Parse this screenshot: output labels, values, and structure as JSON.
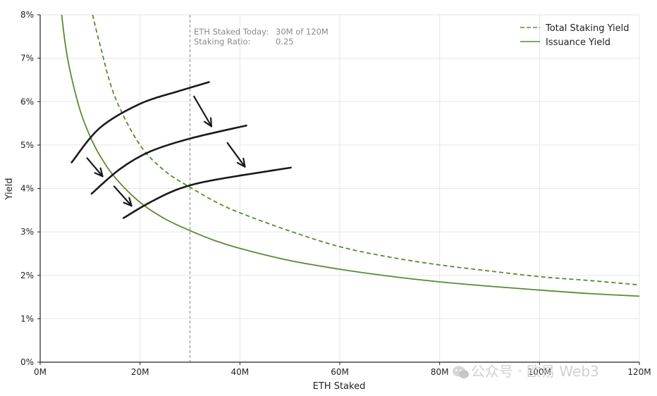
{
  "chart_data": {
    "type": "line",
    "xlabel": "ETH Staked",
    "ylabel": "Yield",
    "xlim": [
      0,
      120
    ],
    "ylim": [
      0,
      8
    ],
    "x_unit": "M ETH",
    "y_unit": "%",
    "x_ticks": [
      "0M",
      "20M",
      "40M",
      "60M",
      "80M",
      "100M",
      "120M"
    ],
    "y_ticks": [
      "0%",
      "1%",
      "2%",
      "3%",
      "4%",
      "5%",
      "6%",
      "7%",
      "8%"
    ],
    "grid": true,
    "legend_position": "top-right",
    "series": [
      {
        "name": "Total Staking Yield",
        "style": "dashed",
        "color": "#5a8a32",
        "x": [
          10.5,
          12,
          15,
          20,
          25,
          30,
          35,
          40,
          50,
          60,
          70,
          80,
          90,
          100,
          110,
          120
        ],
        "y": [
          8.0,
          7.3,
          6.1,
          5.0,
          4.4,
          4.03,
          3.7,
          3.44,
          3.02,
          2.66,
          2.42,
          2.24,
          2.1,
          1.97,
          1.88,
          1.78
        ]
      },
      {
        "name": "Issuance Yield",
        "style": "solid",
        "color": "#5a8a32",
        "x": [
          4.3,
          5,
          6,
          8,
          10,
          12,
          15,
          20,
          25,
          30,
          35,
          40,
          50,
          60,
          70,
          80,
          90,
          100,
          110,
          120
        ],
        "y": [
          8.0,
          7.35,
          6.7,
          5.8,
          5.2,
          4.75,
          4.25,
          3.68,
          3.3,
          3.03,
          2.8,
          2.62,
          2.34,
          2.14,
          1.98,
          1.85,
          1.75,
          1.66,
          1.58,
          1.52
        ]
      }
    ],
    "reference_line": {
      "x": 30,
      "style": "dashed",
      "color": "#888888"
    },
    "annotation": {
      "line1_label": "ETH Staked Today:",
      "line1_value": "30M of 120M",
      "line2_label": "Staking Ratio:",
      "line2_value": "0.25"
    },
    "hand_drawn": {
      "curves": [
        {
          "x": [
            6.3,
            12,
            20,
            28,
            33.8
          ],
          "y": [
            4.6,
            5.4,
            5.95,
            6.25,
            6.45
          ]
        },
        {
          "x": [
            10.3,
            16,
            22,
            30,
            41.3
          ],
          "y": [
            3.88,
            4.45,
            4.85,
            5.15,
            5.45
          ]
        },
        {
          "x": [
            16.7,
            22,
            28,
            35,
            50.2
          ],
          "y": [
            3.32,
            3.68,
            4.0,
            4.2,
            4.48
          ]
        }
      ],
      "arrows": [
        {
          "from": [
            30.8,
            6.12
          ],
          "to": [
            34.3,
            5.43
          ]
        },
        {
          "from": [
            37.5,
            5.05
          ],
          "to": [
            41.0,
            4.5
          ]
        },
        {
          "from": [
            9.4,
            4.7
          ],
          "to": [
            12.5,
            4.28
          ]
        },
        {
          "from": [
            14.8,
            4.05
          ],
          "to": [
            18.3,
            3.6
          ]
        }
      ]
    }
  },
  "watermark": {
    "icon": "wechat-icon",
    "text": "公众号 · 欧易 Web3"
  }
}
